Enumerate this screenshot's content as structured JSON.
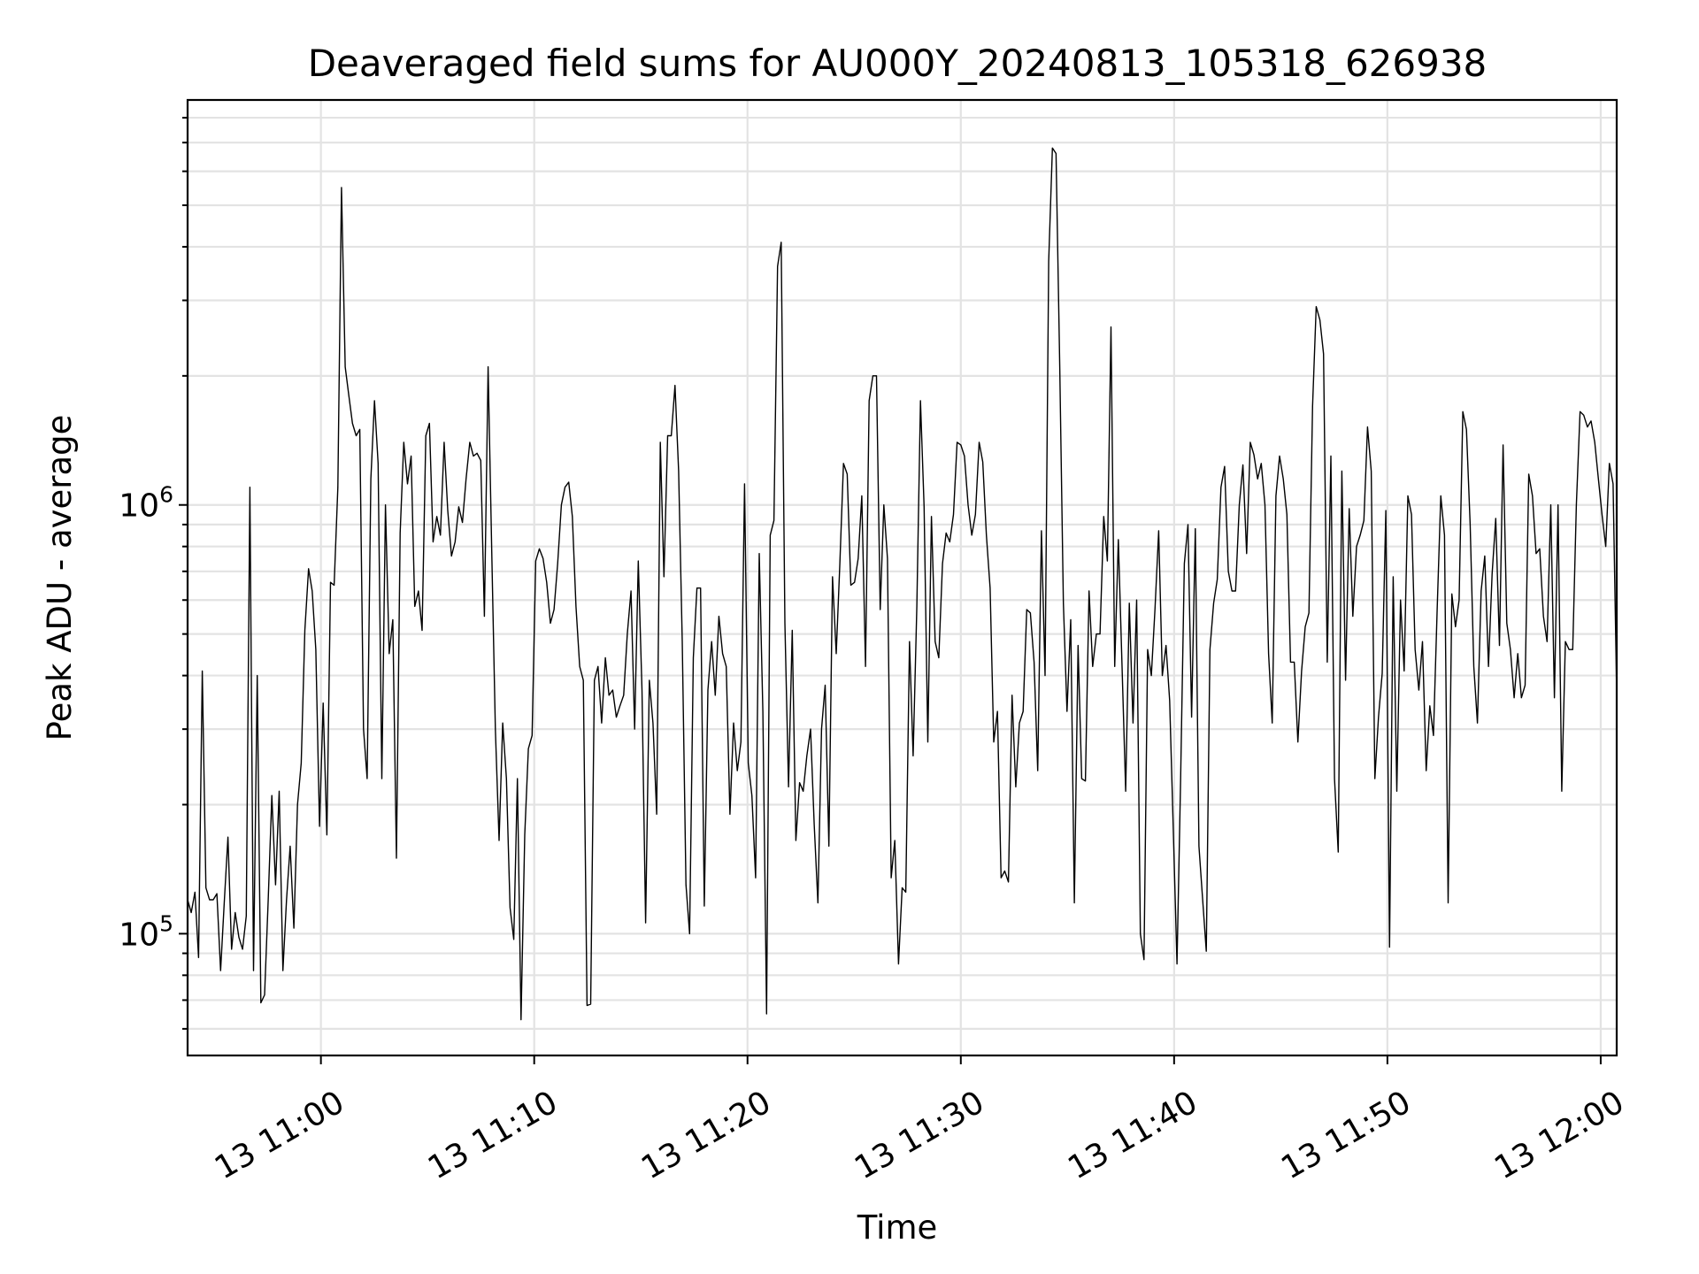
{
  "chart_data": {
    "type": "line",
    "title": "Deaveraged field sums for AU000Y_20240813_105318_626938",
    "xlabel": "Time",
    "ylabel": "Peak ADU - average",
    "yscale": "log",
    "ylim": [
      52000,
      8800000
    ],
    "xlim": [
      "2024-08-13 10:53:45",
      "2024-08-13 12:00:45"
    ],
    "grid": true,
    "grid_minor_y": true,
    "line_color": "#000000",
    "x_ticks": [
      {
        "t": "2024-08-13 11:00:00",
        "label": "13 11:00"
      },
      {
        "t": "2024-08-13 11:10:00",
        "label": "13 11:10"
      },
      {
        "t": "2024-08-13 11:20:00",
        "label": "13 11:20"
      },
      {
        "t": "2024-08-13 11:30:00",
        "label": "13 11:30"
      },
      {
        "t": "2024-08-13 11:40:00",
        "label": "13 11:40"
      },
      {
        "t": "2024-08-13 11:50:00",
        "label": "13 11:50"
      },
      {
        "t": "2024-08-13 12:00:00",
        "label": "13 12:00"
      }
    ],
    "y_ticks": [
      {
        "v": 100000,
        "base": "10",
        "exp": "5"
      },
      {
        "v": 1000000,
        "base": "10",
        "exp": "6"
      }
    ],
    "series": [
      {
        "x_start": "2024-08-13 10:53:45",
        "x_end": "2024-08-13 12:00:45",
        "values": [
          120000,
          112000,
          125000,
          88000,
          410000,
          128000,
          120000,
          120000,
          124000,
          82000,
          118000,
          168000,
          92000,
          112000,
          98000,
          92000,
          110000,
          1100000,
          82000,
          400000,
          69000,
          72000,
          120000,
          210000,
          130000,
          215000,
          82000,
          120000,
          160000,
          103000,
          200000,
          250000,
          510000,
          710000,
          630000,
          460000,
          178000,
          345000,
          170000,
          660000,
          650000,
          1100000,
          5500000,
          2100000,
          1800000,
          1550000,
          1450000,
          1500000,
          300000,
          230000,
          1150000,
          1750000,
          1250000,
          230000,
          1000000,
          450000,
          540000,
          150000,
          860000,
          1400000,
          1120000,
          1300000,
          580000,
          630000,
          510000,
          1450000,
          1550000,
          820000,
          940000,
          850000,
          1400000,
          970000,
          760000,
          820000,
          990000,
          910000,
          1150000,
          1400000,
          1300000,
          1320000,
          1270000,
          550000,
          2100000,
          780000,
          300000,
          165000,
          310000,
          230000,
          115000,
          97000,
          230000,
          63000,
          170000,
          270000,
          290000,
          740000,
          790000,
          750000,
          660000,
          530000,
          570000,
          730000,
          1000000,
          1100000,
          1130000,
          940000,
          580000,
          420000,
          390000,
          68000,
          68500,
          390000,
          420000,
          310000,
          440000,
          360000,
          370000,
          320000,
          340000,
          360000,
          500000,
          630000,
          300000,
          740000,
          370000,
          106000,
          390000,
          310000,
          190000,
          1400000,
          680000,
          1450000,
          1450000,
          1900000,
          1200000,
          480000,
          130000,
          100000,
          440000,
          640000,
          640000,
          116000,
          370000,
          480000,
          360000,
          550000,
          450000,
          420000,
          190000,
          310000,
          240000,
          280000,
          1120000,
          250000,
          210000,
          135000,
          770000,
          330000,
          65000,
          850000,
          920000,
          3600000,
          4100000,
          530000,
          220000,
          510000,
          165000,
          225000,
          215000,
          260000,
          300000,
          180000,
          118000,
          300000,
          380000,
          160000,
          680000,
          450000,
          730000,
          1250000,
          1180000,
          650000,
          660000,
          750000,
          1050000,
          420000,
          1750000,
          2000000,
          2000000,
          570000,
          1000000,
          750000,
          135000,
          165000,
          85000,
          128000,
          125000,
          480000,
          260000,
          580000,
          1750000,
          990000,
          280000,
          940000,
          480000,
          440000,
          730000,
          860000,
          820000,
          950000,
          1400000,
          1380000,
          1300000,
          1000000,
          850000,
          950000,
          1400000,
          1260000,
          850000,
          640000,
          280000,
          330000,
          135000,
          140000,
          132000,
          360000,
          220000,
          310000,
          330000,
          570000,
          560000,
          430000,
          240000,
          870000,
          400000,
          3700000,
          6800000,
          6600000,
          2100000,
          590000,
          330000,
          540000,
          118000,
          470000,
          230000,
          227000,
          630000,
          420000,
          500000,
          500000,
          940000,
          740000,
          2600000,
          420000,
          830000,
          420000,
          215000,
          590000,
          310000,
          600000,
          100000,
          87000,
          460000,
          400000,
          570000,
          870000,
          400000,
          470000,
          350000,
          175000,
          85000,
          230000,
          730000,
          900000,
          320000,
          880000,
          160000,
          120000,
          91000,
          460000,
          590000,
          670000,
          1100000,
          1230000,
          700000,
          630000,
          630000,
          1000000,
          1240000,
          770000,
          1400000,
          1310000,
          1150000,
          1250000,
          1000000,
          450000,
          310000,
          1050000,
          1300000,
          1150000,
          950000,
          430000,
          430000,
          280000,
          410000,
          520000,
          560000,
          1700000,
          2900000,
          2700000,
          2250000,
          430000,
          1300000,
          230000,
          155000,
          1200000,
          390000,
          980000,
          550000,
          800000,
          850000,
          920000,
          1520000,
          1200000,
          230000,
          320000,
          405000,
          970000,
          93000,
          680000,
          215000,
          600000,
          410000,
          1050000,
          950000,
          460000,
          370000,
          480000,
          240000,
          340000,
          290000,
          570000,
          1050000,
          850000,
          118000,
          620000,
          520000,
          600000,
          1650000,
          1500000,
          900000,
          420000,
          310000,
          630000,
          760000,
          420000,
          690000,
          930000,
          470000,
          1380000,
          530000,
          460000,
          355000,
          450000,
          355000,
          380000,
          1180000,
          1050000,
          770000,
          790000,
          550000,
          480000,
          1000000,
          355000,
          1000000,
          215000,
          480000,
          460000,
          460000,
          1000000,
          1650000,
          1620000,
          1520000,
          1570000,
          1400000,
          1150000,
          950000,
          800000,
          1250000,
          1120000,
          360000
        ]
      }
    ]
  }
}
